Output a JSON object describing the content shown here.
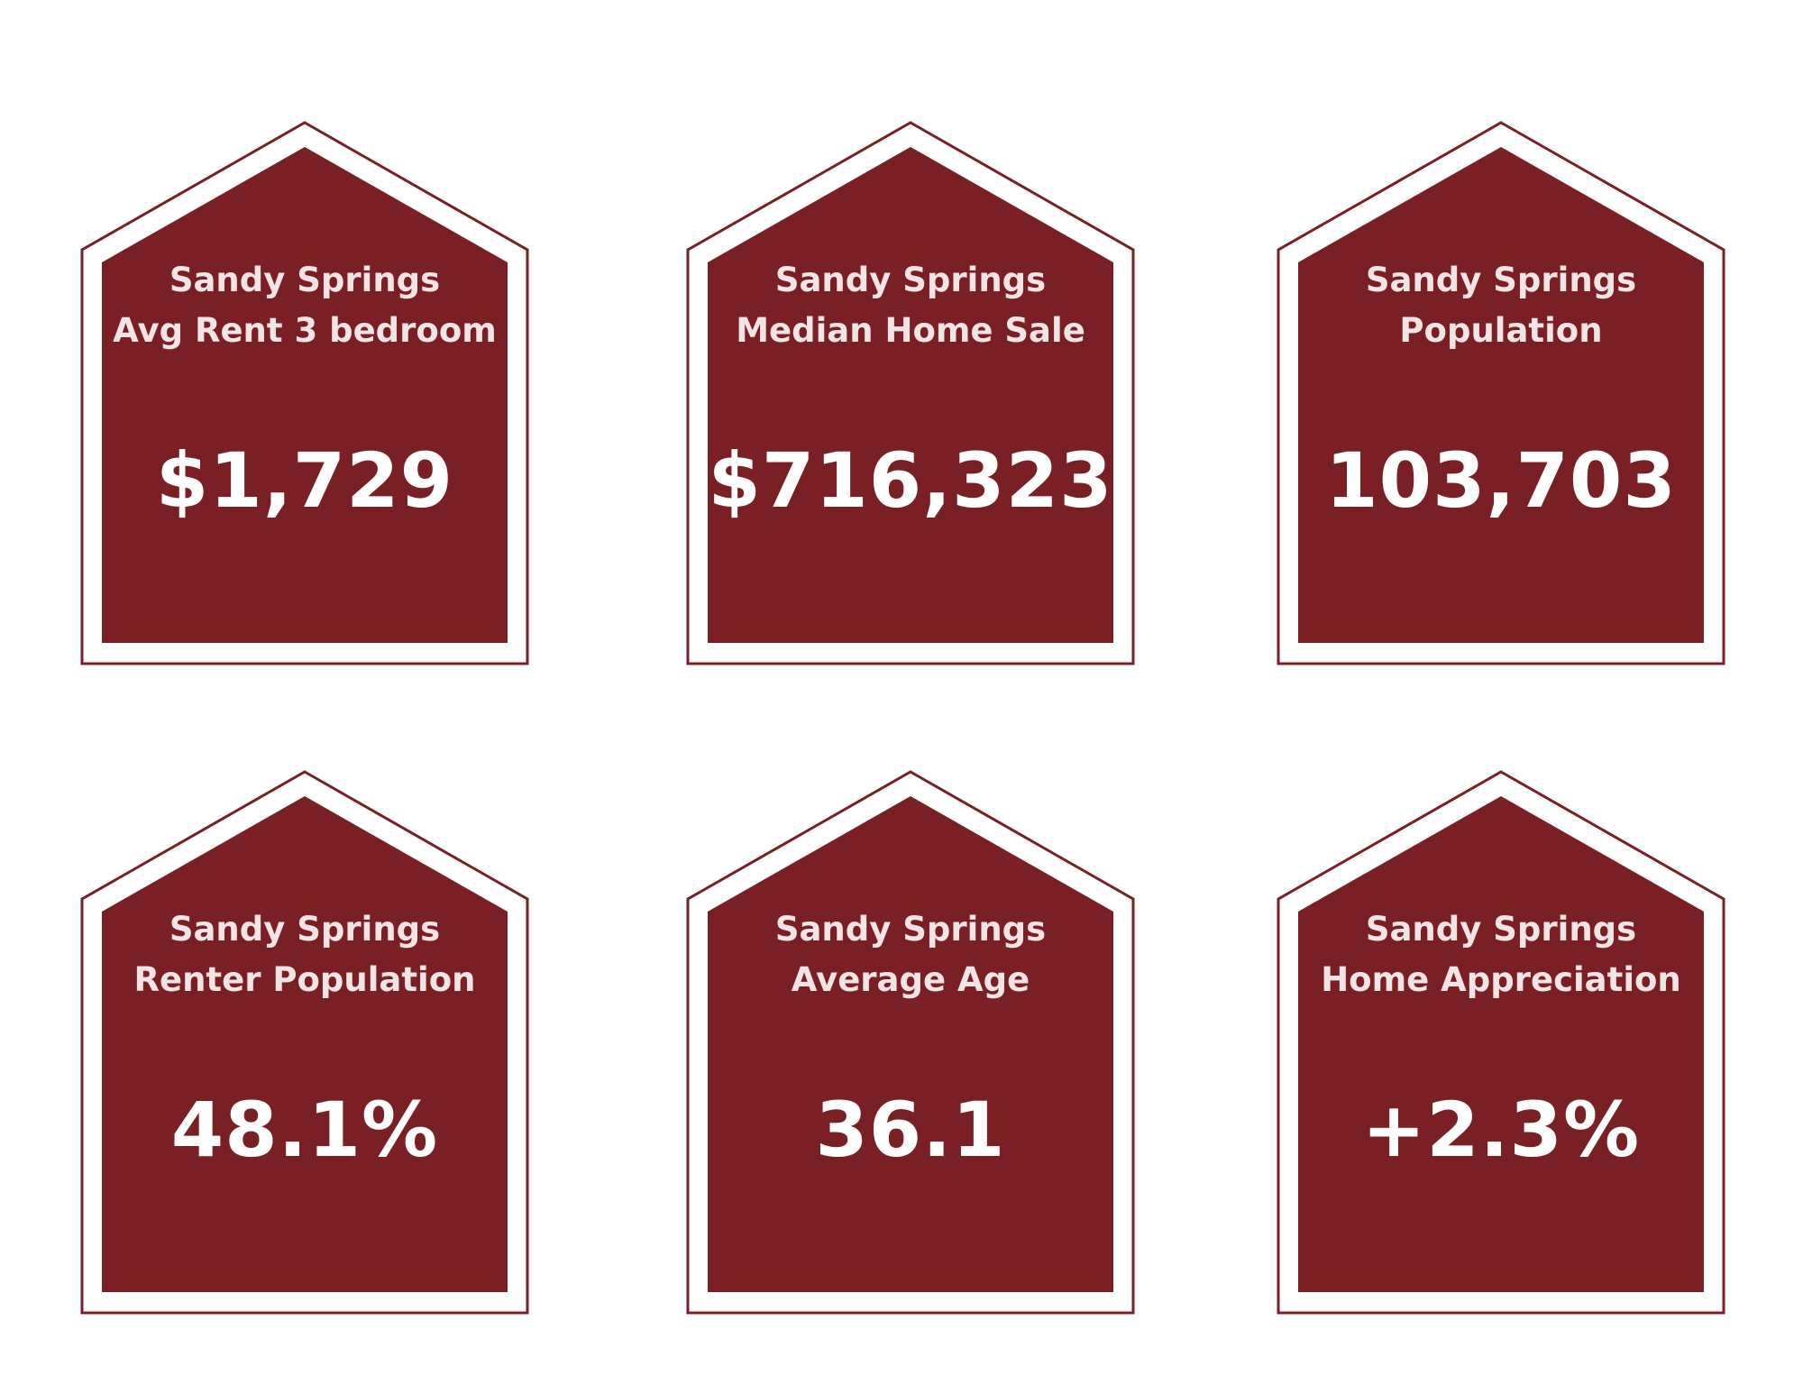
{
  "colors": {
    "maroon": "#7a1f24",
    "label_text": "#f1e4e4",
    "value_text": "#ffffff",
    "background": "#ffffff"
  },
  "cards": [
    {
      "line1": "Sandy Springs",
      "line2": "Avg Rent 3 bedroom",
      "value": "$1,729"
    },
    {
      "line1": "Sandy Springs",
      "line2": "Median Home Sale",
      "value": "$716,323"
    },
    {
      "line1": "Sandy Springs",
      "line2": "Population",
      "value": "103,703"
    },
    {
      "line1": "Sandy Springs",
      "line2": "Renter Population",
      "value": "48.1%"
    },
    {
      "line1": "Sandy Springs",
      "line2": "Average Age",
      "value": "36.1"
    },
    {
      "line1": "Sandy Springs",
      "line2": "Home Appreciation",
      "value": "+2.3%"
    }
  ]
}
